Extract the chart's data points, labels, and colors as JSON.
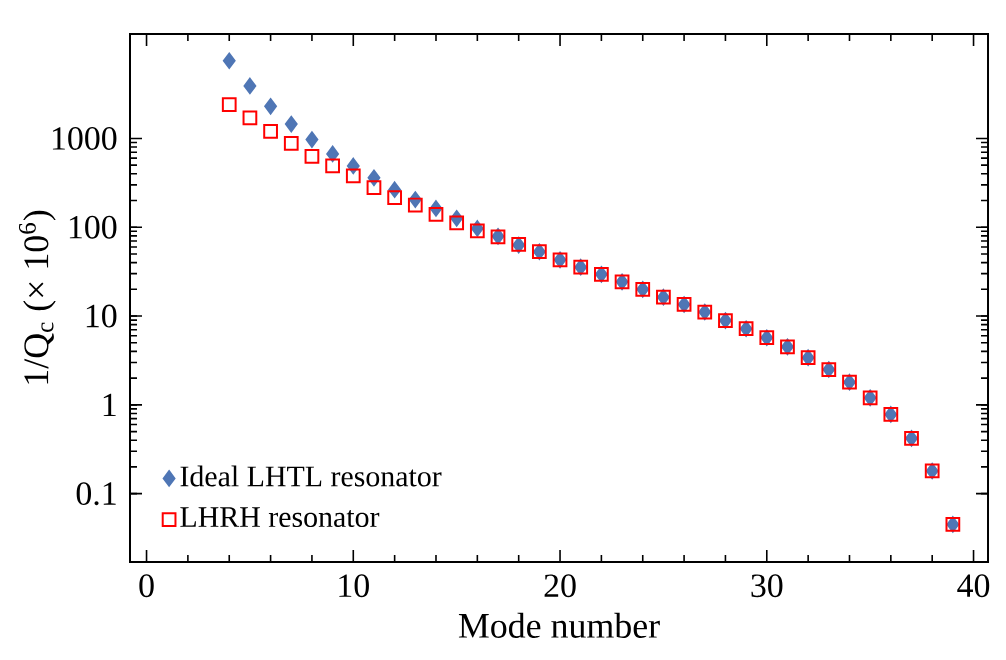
{
  "chart_data": {
    "type": "scatter",
    "xlabel": "Mode number",
    "ylabel": "1/Q$_{c}$ (× 10$^{6}$)",
    "x": [
      4,
      5,
      6,
      7,
      8,
      9,
      10,
      11,
      12,
      13,
      14,
      15,
      16,
      17,
      18,
      19,
      20,
      21,
      22,
      23,
      24,
      25,
      26,
      27,
      28,
      29,
      30,
      31,
      32,
      33,
      34,
      35,
      36,
      37,
      38,
      39
    ],
    "series": [
      {
        "name": "Ideal LHTL resonator",
        "color": "#4f76b5",
        "marker": "diamond",
        "values": [
          7500,
          3900,
          2300,
          1450,
          970,
          670,
          490,
          360,
          265,
          205,
          163,
          126,
          97,
          79,
          63,
          53,
          43,
          35.5,
          29.5,
          24.3,
          20,
          16.3,
          13.5,
          11.1,
          8.9,
          7.2,
          5.7,
          4.5,
          3.4,
          2.5,
          1.8,
          1.2,
          0.78,
          0.42,
          0.18,
          0.045
        ]
      },
      {
        "name": "LHRH resonator",
        "color": "#ff0000",
        "marker": "square",
        "values": [
          2400,
          1700,
          1200,
          880,
          630,
          490,
          380,
          280,
          215,
          178,
          140,
          112,
          91,
          78,
          64,
          53,
          43,
          35.5,
          29.5,
          24.3,
          20,
          16.3,
          13.5,
          11.1,
          8.9,
          7.2,
          5.7,
          4.5,
          3.4,
          2.5,
          1.8,
          1.2,
          0.78,
          0.42,
          0.18,
          0.045
        ]
      }
    ],
    "log": "y",
    "xlim": [
      -0.8,
      40.7
    ],
    "ylim": [
      0.017,
      15000
    ],
    "xticks": [
      0,
      10,
      20,
      30,
      40
    ],
    "yticks": [
      0.1,
      1,
      10,
      100,
      1000
    ],
    "legend": "bottom left",
    "grid": false
  }
}
